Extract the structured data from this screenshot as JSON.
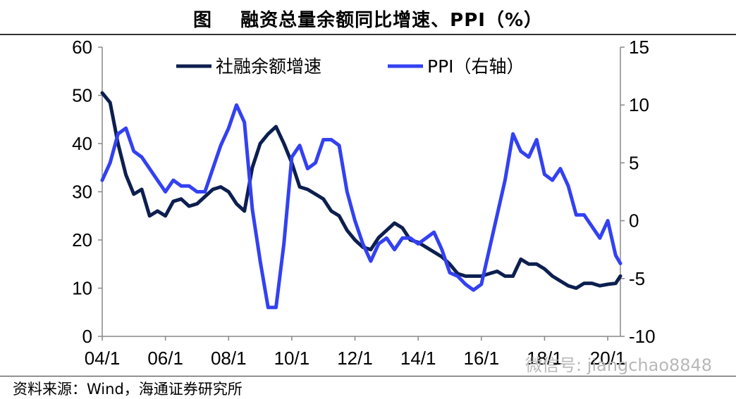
{
  "title": "图    融资总量余额同比增速、PPI（%）",
  "source": "资料来源：Wind，海通证券研究所",
  "watermark": "微信号: jiangchao8848",
  "colors": {
    "series1": "#0d1f4f",
    "series2": "#3341f2",
    "axis": "#888888"
  },
  "chart_data": {
    "type": "line",
    "title": "融资总量余额同比增速、PPI（%）",
    "x_tick_labels": [
      "04/1",
      "06/1",
      "08/1",
      "10/1",
      "12/1",
      "14/1",
      "16/1",
      "18/1",
      "20/1"
    ],
    "x_range": [
      2004.0,
      2020.4
    ],
    "y_left": {
      "range": [
        0,
        60
      ],
      "ticks": [
        0,
        10,
        20,
        30,
        40,
        50,
        60
      ]
    },
    "y_right": {
      "range": [
        -10,
        15
      ],
      "ticks": [
        -10,
        -5,
        0,
        5,
        10,
        15
      ]
    },
    "grid": false,
    "legend_position": "top",
    "series": [
      {
        "name": "社融余额增速",
        "axis": "left",
        "x": [
          2004.0,
          2004.25,
          2004.5,
          2004.75,
          2005.0,
          2005.25,
          2005.5,
          2005.75,
          2006.0,
          2006.25,
          2006.5,
          2006.75,
          2007.0,
          2007.25,
          2007.5,
          2007.75,
          2008.0,
          2008.25,
          2008.5,
          2008.75,
          2009.0,
          2009.25,
          2009.5,
          2009.75,
          2010.0,
          2010.25,
          2010.5,
          2010.75,
          2011.0,
          2011.25,
          2011.5,
          2011.75,
          2012.0,
          2012.25,
          2012.5,
          2012.75,
          2013.0,
          2013.25,
          2013.5,
          2013.75,
          2014.0,
          2014.25,
          2014.5,
          2014.75,
          2015.0,
          2015.25,
          2015.5,
          2015.75,
          2016.0,
          2016.25,
          2016.5,
          2016.75,
          2017.0,
          2017.25,
          2017.5,
          2017.75,
          2018.0,
          2018.25,
          2018.5,
          2018.75,
          2019.0,
          2019.25,
          2019.5,
          2019.75,
          2020.0,
          2020.25,
          2020.4
        ],
        "values": [
          50.5,
          48.5,
          40.0,
          33.5,
          29.5,
          30.5,
          25.0,
          26.0,
          25.0,
          28.0,
          28.5,
          27.0,
          27.5,
          29.0,
          30.5,
          31.0,
          30.0,
          27.5,
          26.0,
          35.0,
          40.0,
          42.0,
          43.5,
          40.0,
          36.0,
          31.0,
          30.5,
          29.5,
          28.5,
          26.0,
          25.0,
          22.0,
          20.0,
          18.5,
          18.0,
          20.5,
          22.0,
          23.5,
          22.5,
          20.0,
          19.5,
          18.5,
          17.5,
          16.5,
          15.0,
          13.0,
          12.5,
          12.5,
          12.5,
          13.0,
          13.5,
          12.5,
          12.5,
          16.0,
          15.0,
          15.0,
          14.0,
          12.5,
          11.5,
          10.5,
          10.0,
          11.0,
          11.0,
          10.5,
          10.8,
          11.0,
          12.5
        ]
      },
      {
        "name": "PPI（右轴）",
        "axis": "right",
        "x": [
          2004.0,
          2004.25,
          2004.5,
          2004.75,
          2005.0,
          2005.25,
          2005.5,
          2005.75,
          2006.0,
          2006.25,
          2006.5,
          2006.75,
          2007.0,
          2007.25,
          2007.5,
          2007.75,
          2008.0,
          2008.25,
          2008.5,
          2008.75,
          2009.0,
          2009.25,
          2009.5,
          2009.75,
          2010.0,
          2010.25,
          2010.5,
          2010.75,
          2011.0,
          2011.25,
          2011.5,
          2011.75,
          2012.0,
          2012.25,
          2012.5,
          2012.75,
          2013.0,
          2013.25,
          2013.5,
          2013.75,
          2014.0,
          2014.25,
          2014.5,
          2014.75,
          2015.0,
          2015.25,
          2015.5,
          2015.75,
          2016.0,
          2016.25,
          2016.5,
          2016.75,
          2017.0,
          2017.25,
          2017.5,
          2017.75,
          2018.0,
          2018.25,
          2018.5,
          2018.75,
          2019.0,
          2019.25,
          2019.5,
          2019.75,
          2020.0,
          2020.25,
          2020.4
        ],
        "values": [
          3.5,
          5.0,
          7.5,
          8.0,
          6.0,
          5.5,
          4.5,
          3.5,
          2.5,
          3.5,
          3.0,
          3.0,
          2.5,
          2.5,
          4.5,
          6.5,
          8.0,
          10.0,
          8.5,
          1.0,
          -3.5,
          -7.5,
          -7.5,
          -2.0,
          5.5,
          6.5,
          4.5,
          5.0,
          7.0,
          7.0,
          6.5,
          2.5,
          0.0,
          -2.0,
          -3.5,
          -2.0,
          -1.5,
          -2.5,
          -1.5,
          -1.5,
          -2.0,
          -1.5,
          -1.0,
          -2.5,
          -4.5,
          -4.8,
          -5.5,
          -6.0,
          -5.5,
          -2.5,
          0.5,
          3.5,
          7.5,
          6.0,
          5.5,
          7.0,
          4.0,
          3.5,
          4.5,
          3.0,
          0.5,
          0.5,
          -0.5,
          -1.5,
          0.0,
          -3.0,
          -3.7
        ]
      }
    ]
  }
}
